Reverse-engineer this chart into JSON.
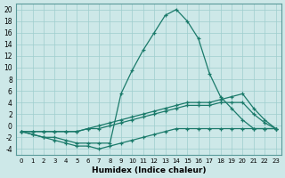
{
  "xlabel": "Humidex (Indice chaleur)",
  "bg_color": "#cde8e8",
  "line_color": "#1a7a6a",
  "xlim": [
    -0.5,
    23.5
  ],
  "ylim": [
    -5,
    21
  ],
  "yticks": [
    -4,
    -2,
    0,
    2,
    4,
    6,
    8,
    10,
    12,
    14,
    16,
    18,
    20
  ],
  "xticks": [
    0,
    1,
    2,
    3,
    4,
    5,
    6,
    7,
    8,
    9,
    10,
    11,
    12,
    13,
    14,
    15,
    16,
    17,
    18,
    19,
    20,
    21,
    22,
    23
  ],
  "series": [
    {
      "x": [
        0,
        1,
        2,
        3,
        4,
        5,
        6,
        7,
        8,
        9,
        10,
        11,
        12,
        13,
        14,
        15,
        16,
        17,
        18,
        19,
        20,
        21,
        22,
        23
      ],
      "y": [
        -1,
        -1.5,
        -2,
        -2,
        -2.5,
        -3,
        -3,
        -3,
        -3,
        5.5,
        9.5,
        13,
        16,
        19,
        20,
        18,
        15,
        9,
        5,
        3,
        1,
        -0.5,
        -0.5,
        -0.5
      ]
    },
    {
      "x": [
        0,
        1,
        2,
        3,
        4,
        5,
        6,
        7,
        8,
        9,
        10,
        11,
        12,
        13,
        14,
        15,
        16,
        17,
        18,
        19,
        20,
        21,
        22,
        23
      ],
      "y": [
        -1,
        -1,
        -1,
        -1,
        -1,
        -1,
        -0.5,
        0,
        0.5,
        1,
        1.5,
        2,
        2.5,
        3,
        3.5,
        4,
        4,
        4,
        4.5,
        5,
        5.5,
        3,
        1,
        -0.5
      ]
    },
    {
      "x": [
        0,
        1,
        2,
        3,
        4,
        5,
        6,
        7,
        8,
        9,
        10,
        11,
        12,
        13,
        14,
        15,
        16,
        17,
        18,
        19,
        20,
        21,
        22,
        23
      ],
      "y": [
        -1,
        -1,
        -1,
        -1,
        -1,
        -1,
        -0.5,
        -0.5,
        0,
        0.5,
        1,
        1.5,
        2,
        2.5,
        3,
        3.5,
        3.5,
        3.5,
        4,
        4,
        4,
        2,
        0.5,
        -0.5
      ]
    },
    {
      "x": [
        0,
        1,
        2,
        3,
        4,
        5,
        6,
        7,
        8,
        9,
        10,
        11,
        12,
        13,
        14,
        15,
        16,
        17,
        18,
        19,
        20,
        21,
        22,
        23
      ],
      "y": [
        -1,
        -1.5,
        -2,
        -2.5,
        -3,
        -3.5,
        -3.5,
        -4,
        -3.5,
        -3,
        -2.5,
        -2,
        -1.5,
        -1,
        -0.5,
        -0.5,
        -0.5,
        -0.5,
        -0.5,
        -0.5,
        -0.5,
        -0.5,
        -0.5,
        -0.5
      ]
    }
  ]
}
